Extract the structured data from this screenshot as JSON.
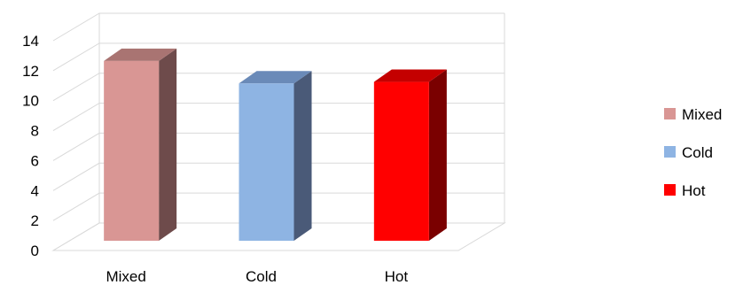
{
  "chart_data": {
    "type": "bar",
    "style": "3d-column",
    "categories": [
      "Mixed",
      "Cold",
      "Hot"
    ],
    "series": [
      {
        "name": "Mixed",
        "values": [
          12,
          null,
          null
        ],
        "color": "#d99694"
      },
      {
        "name": "Cold",
        "values": [
          null,
          10.5,
          null
        ],
        "color": "#8eb4e3"
      },
      {
        "name": "Hot",
        "values": [
          null,
          null,
          10.6
        ],
        "color": "#ff0000"
      }
    ],
    "side_colors": [
      "#6e4b4b",
      "#4a5a78",
      "#7a0000"
    ],
    "top_colors": [
      "#a97472",
      "#6a8ab8",
      "#c40000"
    ],
    "y_ticks": [
      0,
      2,
      4,
      6,
      8,
      10,
      12,
      14
    ],
    "ylim": [
      0,
      14
    ],
    "grid": true,
    "legend_position": "right"
  }
}
